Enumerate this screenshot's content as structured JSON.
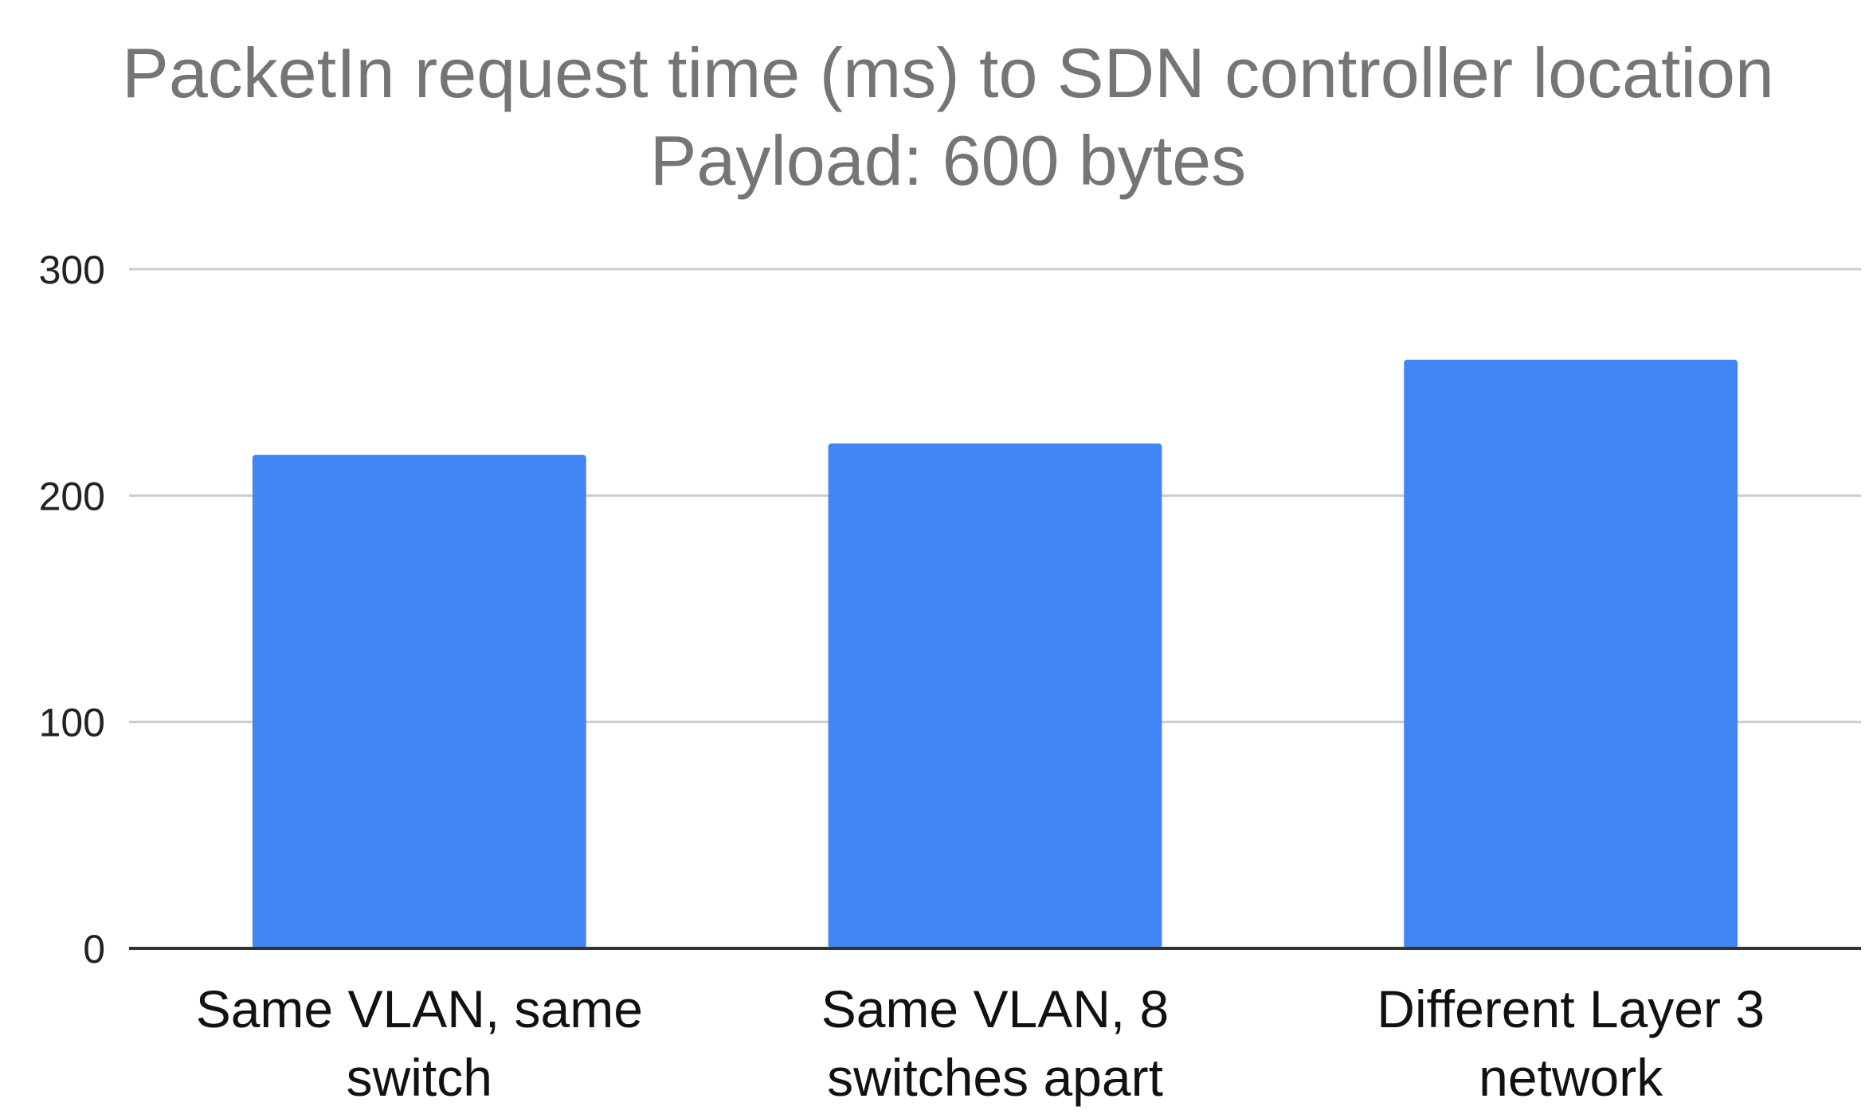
{
  "chart_data": {
    "type": "bar",
    "title": "PacketIn request time (ms) to SDN controller location",
    "subtitle": "Payload: 600 bytes",
    "xlabel": "",
    "ylabel": "",
    "categories": [
      [
        "Same VLAN, same",
        "switch"
      ],
      [
        "Same VLAN, 8",
        "switches apart"
      ],
      [
        "Different Layer 3",
        "network"
      ]
    ],
    "values": [
      218,
      223,
      260
    ],
    "ylim": [
      0,
      300
    ],
    "yticks": [
      0,
      100,
      200,
      300
    ],
    "grid": true,
    "legend": "none",
    "bar_color": "#4285f4"
  }
}
